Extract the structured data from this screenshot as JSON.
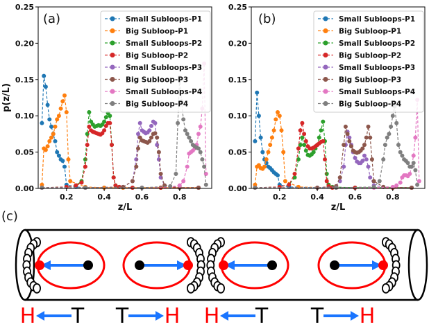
{
  "figure": {
    "panel_a_label": "(a)",
    "panel_b_label": "(b)",
    "panel_c_label": "(c)"
  },
  "chart_data": [
    {
      "type": "line",
      "panel": "(a)",
      "xlabel": "z/L",
      "ylabel": "p(z/L)",
      "xlim": [
        0.05,
        0.97
      ],
      "ylim": [
        0,
        0.25
      ],
      "xticks": [
        "0.2",
        "0.4",
        "0.6",
        "0.8"
      ],
      "yticks": [
        "0.00",
        "0.05",
        "0.10",
        "0.15",
        "0.20",
        "0.25"
      ],
      "legend_position": "top-right",
      "line_style": "dashed with circle markers",
      "series": [
        {
          "name": "Small Subloops-P1",
          "color": "#1f77b4",
          "x": [
            0.07,
            0.08,
            0.09,
            0.1,
            0.11,
            0.12,
            0.13,
            0.14,
            0.15,
            0.16,
            0.17,
            0.18,
            0.19,
            0.2,
            0.25,
            0.3,
            0.4,
            0.5,
            0.6,
            0.7,
            0.8,
            0.9
          ],
          "y": [
            0.09,
            0.155,
            0.14,
            0.115,
            0.095,
            0.085,
            0.075,
            0.065,
            0.05,
            0.045,
            0.04,
            0.038,
            0.03,
            0.005,
            0.002,
            0.001,
            0.001,
            0.001,
            0.001,
            0.001,
            0.001,
            0.001
          ]
        },
        {
          "name": "Big Subloop-P1",
          "color": "#ff7f0e",
          "x": [
            0.07,
            0.08,
            0.09,
            0.1,
            0.11,
            0.12,
            0.13,
            0.14,
            0.15,
            0.16,
            0.17,
            0.18,
            0.19,
            0.2,
            0.21,
            0.22,
            0.3,
            0.4,
            0.5,
            0.6,
            0.7,
            0.8,
            0.9
          ],
          "y": [
            0.005,
            0.055,
            0.053,
            0.058,
            0.065,
            0.07,
            0.075,
            0.085,
            0.095,
            0.1,
            0.11,
            0.12,
            0.128,
            0.105,
            0.04,
            0.01,
            0.002,
            0.001,
            0.001,
            0.001,
            0.001,
            0.001,
            0.001
          ]
        },
        {
          "name": "Small Subloops-P2",
          "color": "#2ca02c",
          "x": [
            0.07,
            0.2,
            0.25,
            0.28,
            0.3,
            0.31,
            0.32,
            0.33,
            0.34,
            0.35,
            0.36,
            0.37,
            0.38,
            0.39,
            0.4,
            0.41,
            0.42,
            0.43,
            0.44,
            0.45,
            0.46,
            0.48,
            0.55,
            0.7,
            0.9
          ],
          "y": [
            0.001,
            0.002,
            0.004,
            0.01,
            0.04,
            0.075,
            0.105,
            0.092,
            0.088,
            0.085,
            0.086,
            0.087,
            0.086,
            0.088,
            0.092,
            0.098,
            0.104,
            0.1,
            0.06,
            0.015,
            0.004,
            0.002,
            0.001,
            0.001,
            0.001
          ]
        },
        {
          "name": "Big Subloop-P2",
          "color": "#d62728",
          "x": [
            0.07,
            0.2,
            0.25,
            0.28,
            0.3,
            0.31,
            0.32,
            0.33,
            0.34,
            0.35,
            0.36,
            0.37,
            0.38,
            0.39,
            0.4,
            0.41,
            0.42,
            0.43,
            0.44,
            0.45,
            0.46,
            0.48,
            0.55,
            0.7,
            0.9
          ],
          "y": [
            0.001,
            0.002,
            0.004,
            0.008,
            0.03,
            0.06,
            0.085,
            0.08,
            0.078,
            0.077,
            0.076,
            0.075,
            0.074,
            0.076,
            0.08,
            0.086,
            0.09,
            0.09,
            0.06,
            0.015,
            0.004,
            0.002,
            0.001,
            0.001,
            0.001
          ]
        },
        {
          "name": "Small Subloops-P3",
          "color": "#9467bd",
          "x": [
            0.07,
            0.3,
            0.5,
            0.55,
            0.57,
            0.58,
            0.59,
            0.6,
            0.61,
            0.62,
            0.63,
            0.64,
            0.65,
            0.66,
            0.67,
            0.68,
            0.69,
            0.7,
            0.72,
            0.8,
            0.9
          ],
          "y": [
            0.001,
            0.001,
            0.002,
            0.01,
            0.04,
            0.075,
            0.09,
            0.08,
            0.078,
            0.076,
            0.077,
            0.08,
            0.086,
            0.092,
            0.09,
            0.06,
            0.04,
            0.015,
            0.004,
            0.001,
            0.001
          ]
        },
        {
          "name": "Big Subloop-P3",
          "color": "#8c564b",
          "x": [
            0.07,
            0.3,
            0.5,
            0.55,
            0.57,
            0.58,
            0.59,
            0.6,
            0.61,
            0.62,
            0.63,
            0.64,
            0.65,
            0.66,
            0.67,
            0.68,
            0.69,
            0.7,
            0.72,
            0.8,
            0.9
          ],
          "y": [
            0.001,
            0.001,
            0.002,
            0.01,
            0.03,
            0.055,
            0.07,
            0.066,
            0.065,
            0.064,
            0.063,
            0.065,
            0.07,
            0.075,
            0.076,
            0.07,
            0.05,
            0.02,
            0.004,
            0.001,
            0.001
          ]
        },
        {
          "name": "Small Subloops-P4",
          "color": "#e377c2",
          "x": [
            0.07,
            0.3,
            0.6,
            0.75,
            0.8,
            0.82,
            0.84,
            0.85,
            0.86,
            0.87,
            0.88,
            0.89,
            0.9,
            0.91,
            0.92,
            0.93,
            0.94
          ],
          "y": [
            0.001,
            0.001,
            0.001,
            0.002,
            0.004,
            0.01,
            0.03,
            0.048,
            0.05,
            0.052,
            0.055,
            0.06,
            0.075,
            0.085,
            0.11,
            0.172,
            0.02
          ]
        },
        {
          "name": "Big Subloop-P4",
          "color": "#7f7f7f",
          "x": [
            0.07,
            0.3,
            0.6,
            0.75,
            0.78,
            0.79,
            0.8,
            0.81,
            0.82,
            0.83,
            0.84,
            0.85,
            0.86,
            0.87,
            0.88,
            0.89,
            0.9,
            0.91,
            0.92,
            0.93,
            0.94
          ],
          "y": [
            0.001,
            0.001,
            0.001,
            0.003,
            0.02,
            0.09,
            0.153,
            0.12,
            0.095,
            0.08,
            0.075,
            0.07,
            0.065,
            0.06,
            0.058,
            0.056,
            0.055,
            0.05,
            0.04,
            0.03,
            0.005
          ]
        }
      ]
    },
    {
      "type": "line",
      "panel": "(b)",
      "xlabel": "z/L",
      "ylabel": "",
      "xlim": [
        0.05,
        0.97
      ],
      "ylim": [
        0,
        0.25
      ],
      "xticks": [
        "0.2",
        "0.4",
        "0.6",
        "0.8"
      ],
      "yticks": [
        "0.00",
        "0.05",
        "0.10",
        "0.15",
        "0.20",
        "0.25"
      ],
      "legend_position": "top-right",
      "line_style": "dashed with circle markers",
      "series": [
        {
          "name": "Small Subloops-P1",
          "color": "#1f77b4",
          "x": [
            0.07,
            0.08,
            0.09,
            0.1,
            0.11,
            0.12,
            0.13,
            0.14,
            0.15,
            0.16,
            0.17,
            0.18,
            0.19,
            0.2,
            0.25,
            0.4,
            0.6,
            0.8,
            0.9
          ],
          "y": [
            0.065,
            0.132,
            0.1,
            0.07,
            0.05,
            0.04,
            0.035,
            0.03,
            0.028,
            0.025,
            0.022,
            0.02,
            0.018,
            0.005,
            0.002,
            0.001,
            0.001,
            0.001,
            0.001
          ]
        },
        {
          "name": "Big Subloop-P1",
          "color": "#ff7f0e",
          "x": [
            0.07,
            0.08,
            0.09,
            0.1,
            0.11,
            0.12,
            0.13,
            0.14,
            0.15,
            0.16,
            0.17,
            0.18,
            0.19,
            0.2,
            0.21,
            0.22,
            0.23,
            0.3,
            0.5,
            0.8,
            0.9
          ],
          "y": [
            0.005,
            0.03,
            0.032,
            0.028,
            0.027,
            0.03,
            0.04,
            0.05,
            0.06,
            0.07,
            0.08,
            0.095,
            0.105,
            0.1,
            0.08,
            0.05,
            0.01,
            0.002,
            0.001,
            0.001,
            0.001
          ]
        },
        {
          "name": "Small Subloops-P2",
          "color": "#2ca02c",
          "x": [
            0.07,
            0.2,
            0.25,
            0.28,
            0.3,
            0.31,
            0.32,
            0.33,
            0.34,
            0.35,
            0.36,
            0.37,
            0.38,
            0.39,
            0.4,
            0.41,
            0.42,
            0.43,
            0.44,
            0.45,
            0.46,
            0.48,
            0.6,
            0.8,
            0.9
          ],
          "y": [
            0.001,
            0.002,
            0.005,
            0.015,
            0.04,
            0.06,
            0.07,
            0.06,
            0.052,
            0.046,
            0.045,
            0.047,
            0.05,
            0.055,
            0.06,
            0.07,
            0.08,
            0.092,
            0.065,
            0.02,
            0.005,
            0.002,
            0.001,
            0.001,
            0.001
          ]
        },
        {
          "name": "Big Subloop-P2",
          "color": "#d62728",
          "x": [
            0.07,
            0.2,
            0.25,
            0.28,
            0.3,
            0.31,
            0.32,
            0.33,
            0.34,
            0.35,
            0.36,
            0.37,
            0.38,
            0.39,
            0.4,
            0.41,
            0.42,
            0.43,
            0.44,
            0.45,
            0.46,
            0.48,
            0.6,
            0.8,
            0.9
          ],
          "y": [
            0.001,
            0.002,
            0.005,
            0.02,
            0.055,
            0.08,
            0.09,
            0.075,
            0.065,
            0.058,
            0.055,
            0.055,
            0.056,
            0.058,
            0.06,
            0.062,
            0.064,
            0.065,
            0.04,
            0.01,
            0.003,
            0.001,
            0.001,
            0.001,
            0.001
          ]
        },
        {
          "name": "Small Subloops-P3",
          "color": "#9467bd",
          "x": [
            0.07,
            0.4,
            0.5,
            0.52,
            0.54,
            0.55,
            0.56,
            0.57,
            0.58,
            0.59,
            0.6,
            0.61,
            0.62,
            0.63,
            0.64,
            0.65,
            0.66,
            0.67,
            0.68,
            0.7,
            0.75,
            0.9
          ],
          "y": [
            0.001,
            0.001,
            0.003,
            0.01,
            0.03,
            0.06,
            0.078,
            0.07,
            0.06,
            0.05,
            0.042,
            0.037,
            0.035,
            0.035,
            0.038,
            0.045,
            0.04,
            0.03,
            0.015,
            0.004,
            0.002,
            0.001
          ]
        },
        {
          "name": "Big Subloop-P3",
          "color": "#8c564b",
          "x": [
            0.07,
            0.4,
            0.5,
            0.52,
            0.54,
            0.55,
            0.56,
            0.57,
            0.58,
            0.59,
            0.6,
            0.61,
            0.62,
            0.63,
            0.64,
            0.65,
            0.66,
            0.67,
            0.68,
            0.69,
            0.7,
            0.75,
            0.9
          ],
          "y": [
            0.001,
            0.001,
            0.003,
            0.015,
            0.06,
            0.085,
            0.075,
            0.065,
            0.058,
            0.052,
            0.05,
            0.049,
            0.05,
            0.052,
            0.055,
            0.06,
            0.07,
            0.085,
            0.07,
            0.04,
            0.01,
            0.002,
            0.001
          ]
        },
        {
          "name": "Small Subloops-P4",
          "color": "#e377c2",
          "x": [
            0.07,
            0.5,
            0.7,
            0.8,
            0.82,
            0.84,
            0.85,
            0.86,
            0.87,
            0.88,
            0.89,
            0.9,
            0.91,
            0.92,
            0.93,
            0.94
          ],
          "y": [
            0.001,
            0.001,
            0.001,
            0.002,
            0.004,
            0.008,
            0.015,
            0.018,
            0.018,
            0.017,
            0.02,
            0.03,
            0.045,
            0.07,
            0.122,
            0.01
          ]
        },
        {
          "name": "Big Subloop-P4",
          "color": "#7f7f7f",
          "x": [
            0.07,
            0.5,
            0.7,
            0.73,
            0.75,
            0.76,
            0.77,
            0.78,
            0.79,
            0.8,
            0.81,
            0.82,
            0.83,
            0.84,
            0.85,
            0.86,
            0.87,
            0.88,
            0.89,
            0.9,
            0.91,
            0.92,
            0.93
          ],
          "y": [
            0.001,
            0.001,
            0.002,
            0.01,
            0.04,
            0.06,
            0.07,
            0.075,
            0.085,
            0.1,
            0.113,
            0.09,
            0.06,
            0.05,
            0.045,
            0.04,
            0.038,
            0.035,
            0.03,
            0.03,
            0.035,
            0.025,
            0.005
          ]
        }
      ]
    }
  ],
  "diagram": {
    "orientation_labels": [
      {
        "head": "H",
        "tail": "T",
        "direction": "left"
      },
      {
        "head": "H",
        "tail": "T",
        "direction": "right"
      },
      {
        "head": "H",
        "tail": "T",
        "direction": "left"
      },
      {
        "head": "H",
        "tail": "T",
        "direction": "right"
      }
    ],
    "colors": {
      "head": "#ff0000",
      "arrow": "#1a75ff",
      "ellipse": "#ff0000",
      "tail": "#000000"
    }
  }
}
